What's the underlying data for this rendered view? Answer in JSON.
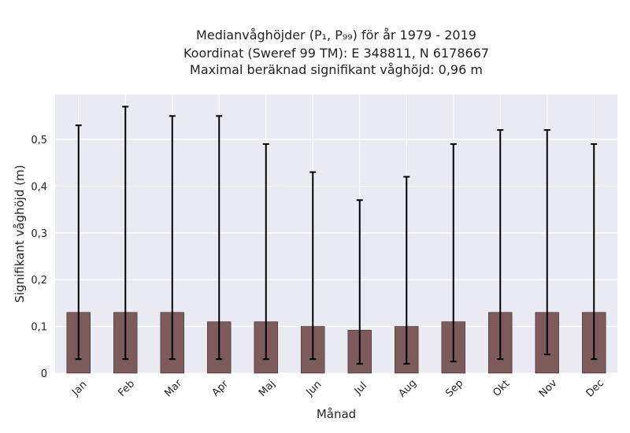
{
  "chart_data": {
    "type": "bar",
    "title_lines": [
      "Medianvåghöjder (P₁, P₉₉) för år 1979 - 2019",
      "Koordinat (Sweref 99 TM): E 348811, N 6178667",
      "Maximal beräknad signifikant våghöjd: 0,96 m"
    ],
    "xlabel": "Månad",
    "ylabel": "Signifikant våghöjd (m)",
    "categories": [
      "Jan",
      "Feb",
      "Mar",
      "Apr",
      "Maj",
      "Jun",
      "Jul",
      "Aug",
      "Sep",
      "Okt",
      "Nov",
      "Dec"
    ],
    "series": [
      {
        "values": [
          0.13,
          0.13,
          0.13,
          0.11,
          0.11,
          0.1,
          0.092,
          0.1,
          0.11,
          0.13,
          0.13,
          0.13
        ],
        "p1": [
          0.03,
          0.03,
          0.03,
          0.03,
          0.03,
          0.03,
          0.02,
          0.02,
          0.025,
          0.03,
          0.04,
          0.03
        ],
        "p99": [
          0.53,
          0.57,
          0.55,
          0.55,
          0.49,
          0.43,
          0.37,
          0.42,
          0.49,
          0.52,
          0.52,
          0.49
        ]
      }
    ],
    "yticks": [
      0,
      0.1,
      0.2,
      0.3,
      0.4,
      0.5
    ],
    "ytick_labels": [
      "0",
      "0,1",
      "0,2",
      "0,3",
      "0,4",
      "0,5"
    ],
    "ylim": [
      0,
      0.596
    ],
    "grid": true,
    "colors": {
      "bar": "#7d5b5b",
      "error": "#000000",
      "background": "#eaeaf2",
      "grid": "#ffffff"
    }
  }
}
